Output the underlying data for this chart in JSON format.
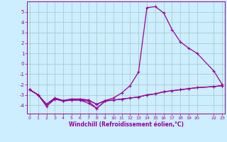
{
  "xlabel": "Windchill (Refroidissement éolien,°C)",
  "background_color": "#cceeff",
  "grid_color": "#aacccc",
  "line_color": "#990099",
  "x_values": [
    0,
    1,
    2,
    3,
    4,
    5,
    6,
    7,
    8,
    9,
    10,
    11,
    12,
    13,
    14,
    15,
    16,
    17,
    18,
    19,
    20,
    22,
    23
  ],
  "series1_x": [
    0,
    1,
    2,
    3,
    4,
    5,
    6,
    7,
    8,
    9
  ],
  "series1_y": [
    -2.5,
    -3.0,
    -4.1,
    -3.4,
    -3.6,
    -3.5,
    -3.5,
    -3.6,
    -4.3,
    -3.6
  ],
  "series2": [
    -2.5,
    -3.0,
    -3.9,
    -3.3,
    -3.55,
    -3.4,
    -3.4,
    -3.5,
    -3.9,
    -3.55,
    -3.5,
    -3.4,
    -3.3,
    -3.2,
    -3.0,
    -2.9,
    -2.7,
    -2.6,
    -2.5,
    -2.4,
    -2.3,
    -2.2,
    -2.1
  ],
  "series3": [
    -2.5,
    -3.0,
    -3.9,
    -3.3,
    -3.55,
    -3.4,
    -3.4,
    -3.5,
    -3.9,
    -3.55,
    -3.3,
    -2.8,
    -2.1,
    -0.8,
    5.4,
    5.5,
    4.9,
    3.3,
    2.1,
    1.5,
    1.0,
    -0.7,
    -2.0
  ],
  "series4": [
    -2.5,
    -3.0,
    -3.9,
    -3.4,
    -3.55,
    -3.5,
    -3.5,
    -3.8,
    -4.3,
    -3.6,
    -3.5,
    -3.4,
    -3.3,
    -3.2,
    -3.0,
    -2.9,
    -2.7,
    -2.6,
    -2.5,
    -2.4,
    -2.3,
    -2.2,
    -2.1
  ],
  "ylim": [
    -4.8,
    6.0
  ],
  "xlim": [
    -0.3,
    23.3
  ],
  "yticks": [
    -4,
    -3,
    -2,
    -1,
    0,
    1,
    2,
    3,
    4,
    5
  ],
  "xticks": [
    0,
    1,
    2,
    3,
    4,
    5,
    6,
    7,
    8,
    9,
    10,
    11,
    12,
    13,
    14,
    15,
    16,
    17,
    18,
    19,
    20,
    22,
    23
  ],
  "xtick_labels": [
    "0",
    "1",
    "2",
    "3",
    "4",
    "5",
    "6",
    "7",
    "8",
    "9",
    "10",
    "11",
    "12",
    "13",
    "14",
    "15",
    "16",
    "17",
    "18",
    "19",
    "20",
    "22",
    "23"
  ]
}
